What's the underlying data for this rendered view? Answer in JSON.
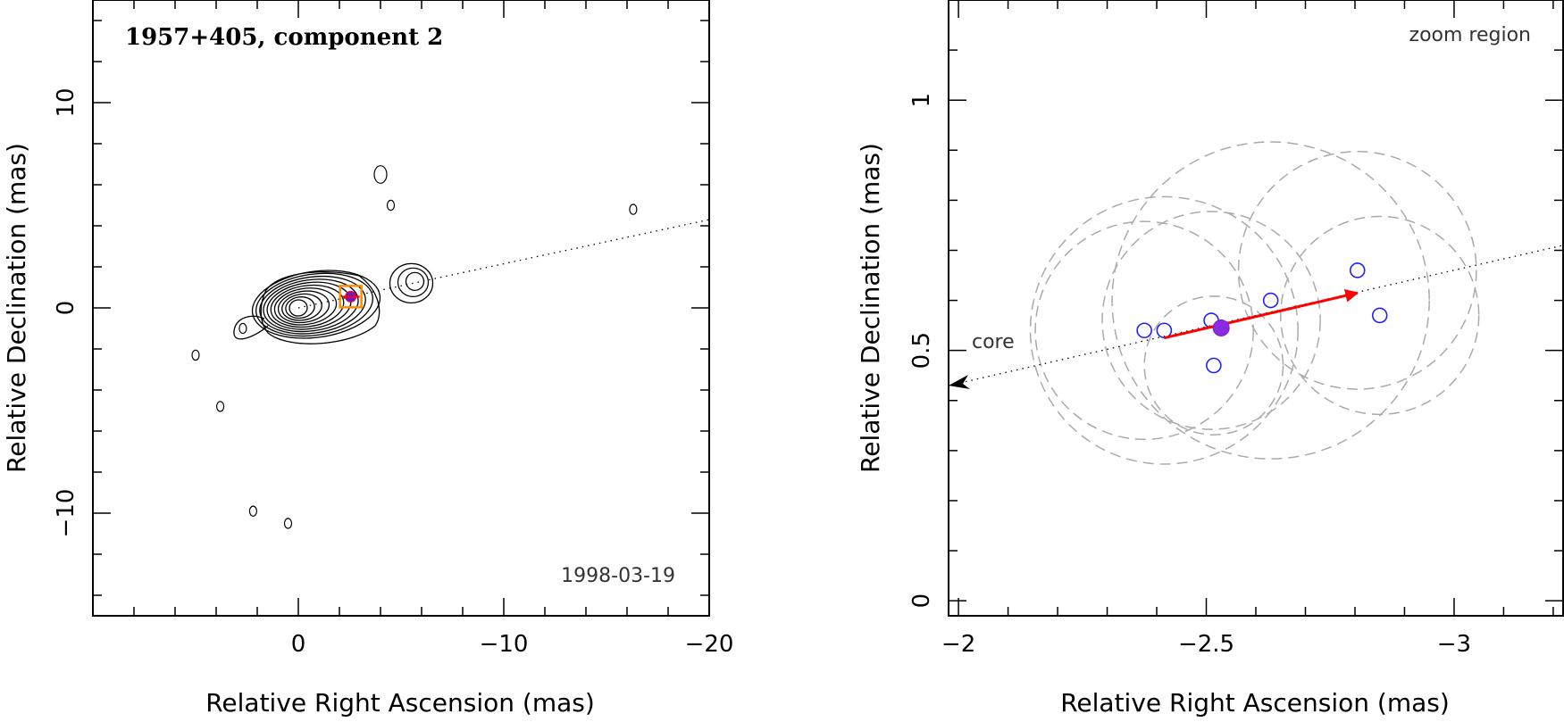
{
  "chart_data": [
    {
      "type": "contour",
      "title": "1957+405, component 2",
      "epoch": "1998-03-19",
      "xlabel": "Relative Right Ascension (mas)",
      "ylabel": "Relative Declination (mas)",
      "xlim": [
        10,
        -20
      ],
      "ylim": [
        -15,
        15
      ],
      "xticks": [
        0,
        -10,
        -20
      ],
      "yticks": [
        -10,
        0,
        10
      ],
      "xtick_labels": [
        "0",
        "−10",
        "−20"
      ],
      "ytick_labels": [
        "−10",
        "0",
        "10"
      ],
      "jet_axis": {
        "from": [
          0,
          0
        ],
        "to": [
          -20,
          4.3
        ]
      },
      "component_position": [
        -2.55,
        0.55
      ],
      "zoom_box": {
        "x": [
          -2.0,
          -3.2
        ],
        "y": [
          0,
          1.1
        ]
      },
      "core_contour_levels": 11,
      "features": [
        {
          "kind": "core",
          "x": 0,
          "y": 0
        },
        {
          "kind": "blob",
          "x": -5.5,
          "y": 1.2
        },
        {
          "kind": "blob",
          "x": -4.0,
          "y": 6.5
        },
        {
          "kind": "blob",
          "x": -4.5,
          "y": 5.0
        },
        {
          "kind": "blob",
          "x": 2.7,
          "y": -1.0
        },
        {
          "kind": "blob",
          "x": -16.3,
          "y": 4.8
        },
        {
          "kind": "blob",
          "x": 5.0,
          "y": -2.3
        },
        {
          "kind": "blob",
          "x": 3.8,
          "y": -4.8
        },
        {
          "kind": "blob",
          "x": 0.5,
          "y": -10.5
        },
        {
          "kind": "blob",
          "x": 2.2,
          "y": -9.9
        }
      ]
    },
    {
      "type": "scatter",
      "title": "zoom region",
      "xlabel": "Relative Right Ascension (mas)",
      "ylabel": "Relative Declination (mas)",
      "xlim": [
        -1.98,
        -3.22
      ],
      "ylim": [
        -0.03,
        1.2
      ],
      "xticks": [
        -2,
        -2.5,
        -3
      ],
      "yticks": [
        0,
        0.5,
        1
      ],
      "xtick_labels": [
        "−2",
        "−2.5",
        "−3"
      ],
      "ytick_labels": [
        "0",
        "0.5",
        "1"
      ],
      "core_label": "core",
      "core_arrow": {
        "from": [
          -2.37,
          0.52
        ],
        "to": [
          -1.98,
          0.43
        ]
      },
      "jet_axis": {
        "from": [
          -1.98,
          0.43
        ],
        "to": [
          -3.22,
          0.71
        ]
      },
      "points": [
        {
          "x": -2.375,
          "y": 0.54
        },
        {
          "x": -2.415,
          "y": 0.54
        },
        {
          "x": -2.51,
          "y": 0.56
        },
        {
          "x": -2.515,
          "y": 0.47
        },
        {
          "x": -2.63,
          "y": 0.6
        },
        {
          "x": -2.805,
          "y": 0.66
        },
        {
          "x": -2.85,
          "y": 0.57
        }
      ],
      "mean_position": {
        "x": -2.53,
        "y": 0.545
      },
      "motion_vector": {
        "from": [
          -2.415,
          0.525
        ],
        "to": [
          -2.805,
          0.615
        ]
      },
      "uncertainty_circles": [
        {
          "x": -2.375,
          "y": 0.54,
          "r": 0.22
        },
        {
          "x": -2.415,
          "y": 0.54,
          "r": 0.27
        },
        {
          "x": -2.51,
          "y": 0.56,
          "r": 0.22
        },
        {
          "x": -2.515,
          "y": 0.47,
          "r": 0.14
        },
        {
          "x": -2.63,
          "y": 0.6,
          "r": 0.32
        },
        {
          "x": -2.805,
          "y": 0.66,
          "r": 0.24
        },
        {
          "x": -2.85,
          "y": 0.57,
          "r": 0.2
        }
      ]
    }
  ]
}
